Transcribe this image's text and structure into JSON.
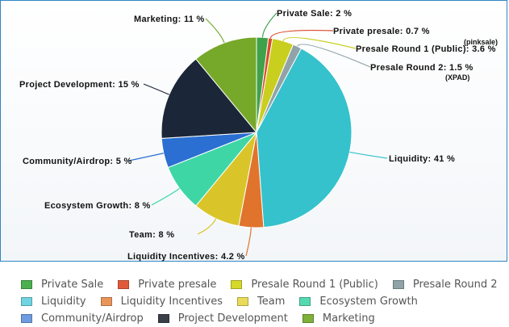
{
  "chart_data": {
    "type": "pie",
    "title": "",
    "slices": [
      {
        "name": "Private Sale",
        "value": 2,
        "label": "Private Sale: 2 %",
        "color": "#3fa14a"
      },
      {
        "name": "Private presale",
        "value": 0.7,
        "label": "Private presale: 0.7 %",
        "color": "#d94b2b"
      },
      {
        "name": "Presale Round 1 (Public)",
        "value": 3.6,
        "label": "Presale Round 1 (Public): 3.6 %",
        "sublabel": "(pinksale)",
        "color": "#c9cf1f"
      },
      {
        "name": "Presale Round 2",
        "value": 1.5,
        "label": "Presale Round 2: 1.5 %",
        "sublabel": "(XPAD)",
        "color": "#8fa3a8"
      },
      {
        "name": "Liquidity",
        "value": 41,
        "label": "Liquidity: 41 %",
        "color": "#35c2cc"
      },
      {
        "name": "Liquidity Incentives",
        "value": 4.2,
        "label": "Liquidity Incentives: 4.2 %",
        "color": "#e0742c"
      },
      {
        "name": "Team",
        "value": 8,
        "label": "Team: 8 %",
        "color": "#d9c52a"
      },
      {
        "name": "Ecosystem Growth",
        "value": 8,
        "label": "Ecosystem Growth: 8 %",
        "color": "#3fd6a6"
      },
      {
        "name": "Community/Airdrop",
        "value": 5,
        "label": "Community/Airdrop: 5 %",
        "color": "#2a6fd1"
      },
      {
        "name": "Project Development",
        "value": 15,
        "label": "Project Development: 15 %",
        "color": "#1b2738"
      },
      {
        "name": "Marketing",
        "value": 11,
        "label": "Marketing: 11 %",
        "color": "#76a82a"
      }
    ],
    "legend_position": "bottom",
    "legend_rows": [
      [
        "Private Sale",
        "Private presale",
        "Presale Round 1 (Public)",
        "Presale Round 2"
      ],
      [
        "Liquidity",
        "Liquidity Incentives",
        "Team",
        "Ecosystem Growth"
      ],
      [
        "Community/Airdrop",
        "Project Development",
        "Marketing"
      ]
    ],
    "legend_colors": {
      "Private Sale": "#4caf50",
      "Private presale": "#e05a3a",
      "Presale Round 1 (Public)": "#d4d92a",
      "Presale Round 2": "#8fa3a8",
      "Liquidity": "#6fd3e0",
      "Liquidity Incentives": "#e8955a",
      "Team": "#e8db5a",
      "Ecosystem Growth": "#55d9b0",
      "Community/Airdrop": "#6f9be0",
      "Project Development": "#3a3f48",
      "Marketing": "#7eb03a"
    }
  }
}
